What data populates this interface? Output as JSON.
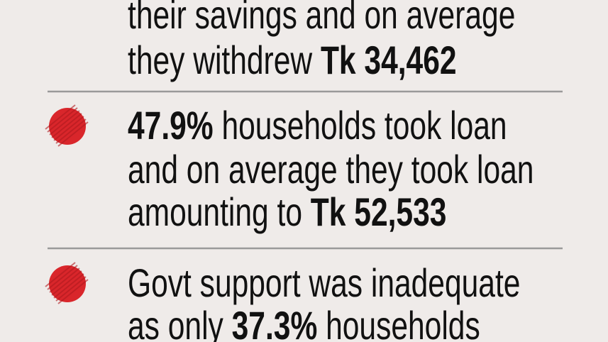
{
  "items": [
    {
      "bullet": false,
      "lines": [
        [
          {
            "text": "their savings and on average"
          }
        ],
        [
          {
            "text": "they withdrew "
          },
          {
            "text": "Tk 34,462",
            "bold": true
          }
        ]
      ]
    },
    {
      "bullet": true,
      "lines": [
        [
          {
            "text": "47.9%",
            "bold": true
          },
          {
            "text": " households took loan"
          }
        ],
        [
          {
            "text": "and on average they took loan"
          }
        ],
        [
          {
            "text": "amounting to "
          },
          {
            "text": "Tk 52,533",
            "bold": true
          }
        ]
      ]
    },
    {
      "bullet": true,
      "lines": [
        [
          {
            "text": "Govt support was inadequate"
          }
        ],
        [
          {
            "text": "as only "
          },
          {
            "text": "37.3%",
            "bold": true
          },
          {
            "text": " households"
          }
        ]
      ]
    }
  ]
}
